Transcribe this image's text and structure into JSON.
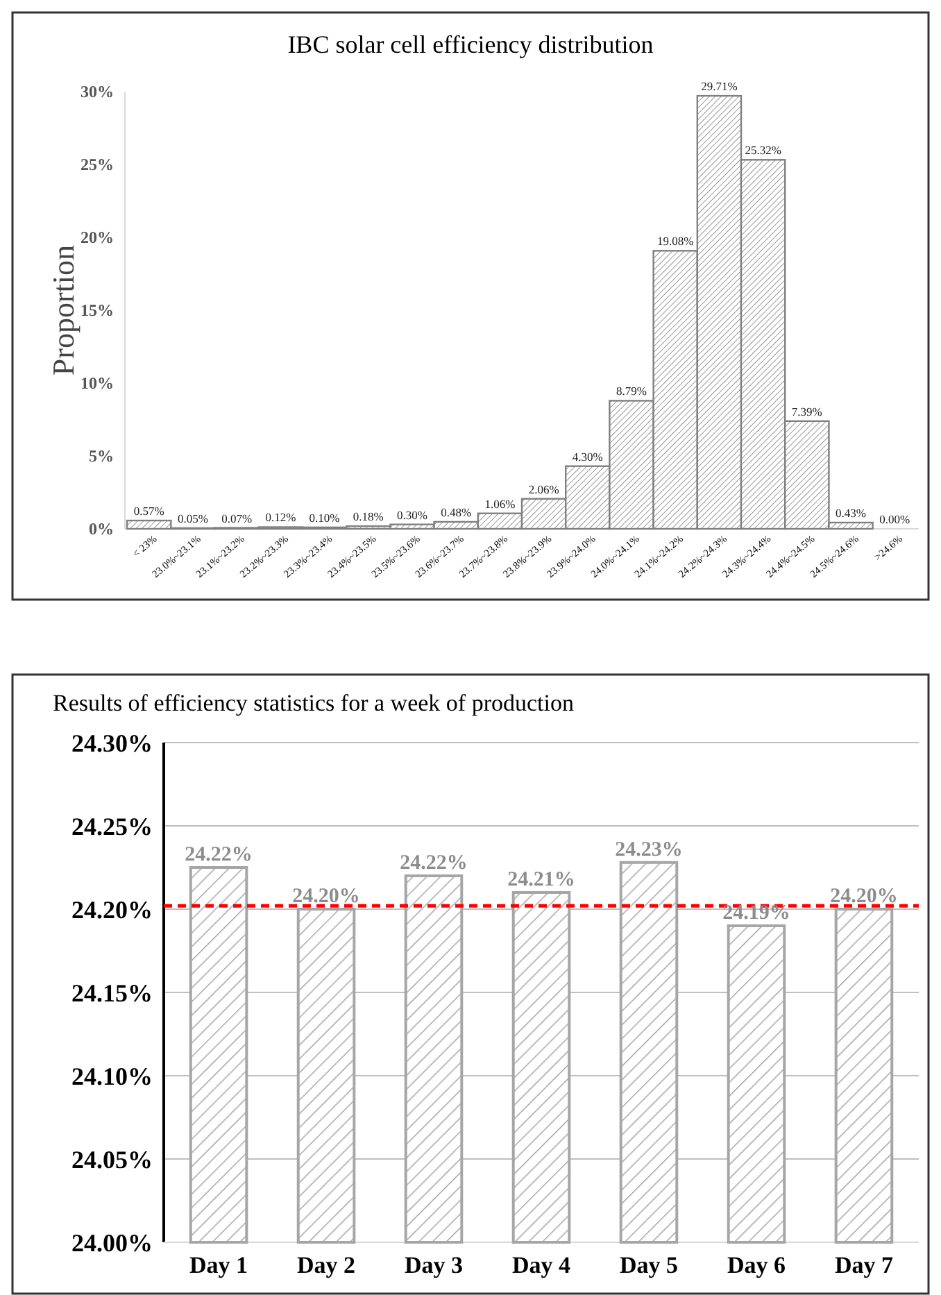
{
  "chart_data": [
    {
      "type": "bar",
      "title": "IBC solar cell efficiency distribution",
      "ylabel": "Proportion",
      "categories": [
        "< 23%",
        "23.0%~23.1%",
        "23.1%~23.2%",
        "23.2%~23.3%",
        "23.3%~23.4%",
        "23.4%~23.5%",
        "23.5%~23.6%",
        "23.6%~23.7%",
        "23.7%~23.8%",
        "23.8%~23.9%",
        "23.9%~24.0%",
        "24.0%~24.1%",
        "24.1%~24.2%",
        "24.2%~24.3%",
        "24.3%~24.4%",
        "24.4%~24.5%",
        "24.5%~24.6%",
        ">24.6%"
      ],
      "values": [
        0.57,
        0.05,
        0.07,
        0.12,
        0.1,
        0.18,
        0.3,
        0.48,
        1.06,
        2.06,
        4.3,
        8.79,
        19.08,
        29.71,
        25.32,
        7.39,
        0.43,
        0.0
      ],
      "value_labels": [
        "0.57%",
        "0.05%",
        "0.07%",
        "0.12%",
        "0.10%",
        "0.18%",
        "0.30%",
        "0.48%",
        "1.06%",
        "2.06%",
        "4.30%",
        "8.79%",
        "19.08%",
        "29.71%",
        "25.32%",
        "7.39%",
        "0.43%",
        "0.00%"
      ],
      "color": "#808080",
      "ylim": [
        0,
        30
      ],
      "yticks": [
        {
          "value": 0,
          "label": "0%"
        },
        {
          "value": 5,
          "label": "5%"
        },
        {
          "value": 10,
          "label": "10%"
        },
        {
          "value": 15,
          "label": "15%"
        },
        {
          "value": 20,
          "label": "20%"
        },
        {
          "value": 25,
          "label": "25%"
        },
        {
          "value": 30,
          "label": "30%"
        }
      ],
      "grid": false
    },
    {
      "type": "bar",
      "title": "Results of efficiency statistics for a week of production",
      "categories": [
        "Day 1",
        "Day 2",
        "Day 3",
        "Day 4",
        "Day 5",
        "Day 6",
        "Day 7"
      ],
      "values": [
        24.225,
        24.2,
        24.22,
        24.21,
        24.228,
        24.19,
        24.2
      ],
      "value_labels": [
        "24.22%",
        "24.20%",
        "24.22%",
        "24.21%",
        "24.23%",
        "24.19%",
        "24.20%"
      ],
      "color": "#a6a6a6",
      "ylim": [
        24.0,
        24.3
      ],
      "yticks": [
        {
          "value": 24.0,
          "label": "24.00%"
        },
        {
          "value": 24.05,
          "label": "24.05%"
        },
        {
          "value": 24.1,
          "label": "24.10%"
        },
        {
          "value": 24.15,
          "label": "24.15%"
        },
        {
          "value": 24.2,
          "label": "24.20%"
        },
        {
          "value": 24.25,
          "label": "24.25%"
        },
        {
          "value": 24.3,
          "label": "24.30%"
        }
      ],
      "grid": "y",
      "ref_lines": [
        {
          "axis": "y",
          "value": 24.202,
          "color": "#ff0000",
          "line_style": "dashed"
        }
      ]
    }
  ]
}
